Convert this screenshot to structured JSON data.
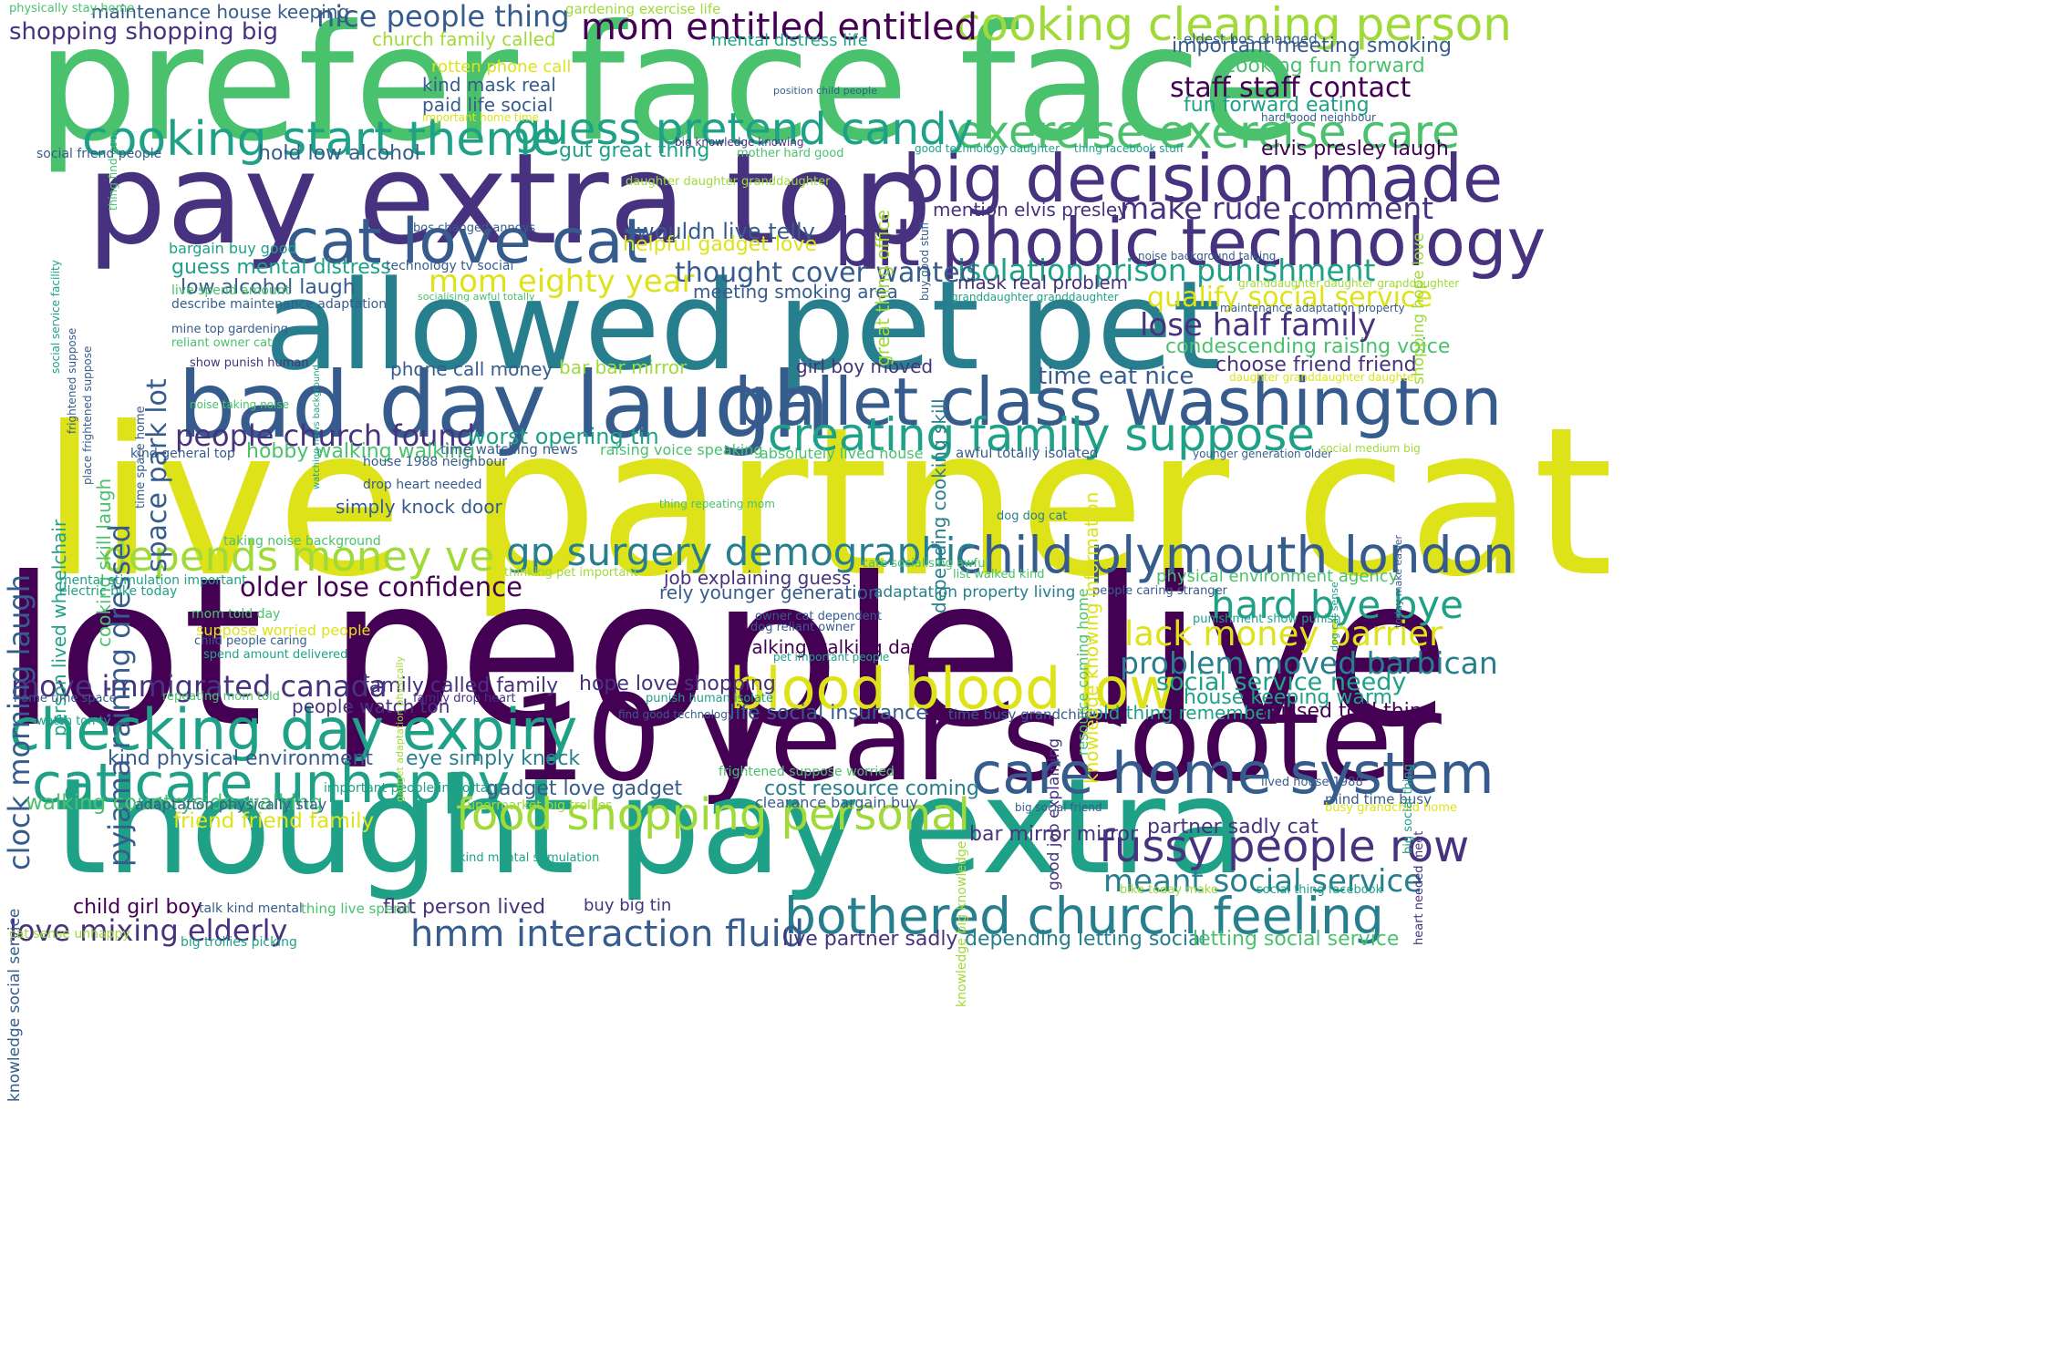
{
  "colors": {
    "yellow": "#dde318",
    "lime": "#a0da39",
    "green": "#4ac16d",
    "teal": "#1fa187",
    "blue": "#277f8e",
    "slate": "#365c8d",
    "indigo": "#46327e",
    "purple": "#440154"
  },
  "words": [
    {
      "text": "prefer face face",
      "color": "green"
    },
    {
      "text": "pay extra top",
      "color": "indigo"
    },
    {
      "text": "allowed pet pet",
      "color": "blue"
    },
    {
      "text": "bad day laugh",
      "color": "slate"
    },
    {
      "text": "live partner cat",
      "color": "yellow"
    },
    {
      "text": "lot people live",
      "color": "purple"
    },
    {
      "text": "10 year scooter",
      "color": "purple"
    },
    {
      "text": "thought pay extra",
      "color": "teal"
    },
    {
      "text": "big decision made",
      "color": "indigo"
    },
    {
      "text": "bit phobic technology",
      "color": "indigo"
    },
    {
      "text": "ballet class washington",
      "color": "slate"
    },
    {
      "text": "cooking cleaning person",
      "color": "lime"
    },
    {
      "text": "exercise exercise care",
      "color": "green"
    },
    {
      "text": "cat love cat",
      "color": "slate"
    },
    {
      "text": "cooking start theme",
      "color": "teal"
    },
    {
      "text": "guess pretend candy",
      "color": "teal"
    },
    {
      "text": "creating family suppose",
      "color": "teal"
    },
    {
      "text": "child plymouth london",
      "color": "slate"
    },
    {
      "text": "checking day expiry",
      "color": "teal"
    },
    {
      "text": "cat care unhappy",
      "color": "teal"
    },
    {
      "text": "blood blood low",
      "color": "yellow"
    },
    {
      "text": "care home system",
      "color": "slate"
    },
    {
      "text": "bothered church feeling",
      "color": "blue"
    },
    {
      "text": "food shopping personal",
      "color": "lime"
    },
    {
      "text": "fussy people row",
      "color": "indigo"
    },
    {
      "text": "hmm interaction fluid",
      "color": "slate"
    },
    {
      "text": "gp surgery demographic",
      "color": "blue"
    },
    {
      "text": "depends money ve",
      "color": "lime"
    },
    {
      "text": "people church found",
      "color": "indigo"
    },
    {
      "text": "mom entitled entitled",
      "color": "purple"
    },
    {
      "text": "nice people thing",
      "color": "slate"
    },
    {
      "text": "isolation prison punishment",
      "color": "teal"
    },
    {
      "text": "lose half family",
      "color": "indigo"
    },
    {
      "text": "hard bye bye",
      "color": "teal"
    },
    {
      "text": "lack money barrier",
      "color": "yellow"
    },
    {
      "text": "problem moved barbican",
      "color": "blue"
    },
    {
      "text": "move immigrated canada",
      "color": "indigo"
    },
    {
      "text": "older lose confidence",
      "color": "purple"
    },
    {
      "text": "meant social service",
      "color": "blue"
    },
    {
      "text": "love mixing elderly",
      "color": "indigo"
    },
    {
      "text": "make rude comment",
      "color": "indigo"
    },
    {
      "text": "mom eighty year",
      "color": "yellow"
    },
    {
      "text": "thought cover wanted",
      "color": "slate"
    },
    {
      "text": "staff staff contact",
      "color": "purple"
    },
    {
      "text": "qualify social service",
      "color": "yellow"
    },
    {
      "text": "clock morning laugh",
      "color": "slate"
    },
    {
      "text": "pyjama raining dressed",
      "color": "slate"
    },
    {
      "text": "space park lot",
      "color": "slate"
    },
    {
      "text": "social service needy",
      "color": "teal"
    },
    {
      "text": "house keeping warm",
      "color": "teal"
    },
    {
      "text": "walking countryside walking",
      "color": "green"
    },
    {
      "text": "friend friend family",
      "color": "yellow"
    },
    {
      "text": "kind physical environment",
      "color": "slate"
    },
    {
      "text": "eye simply knock",
      "color": "blue"
    },
    {
      "text": "people watch ton",
      "color": "indigo"
    },
    {
      "text": "family called family",
      "color": "indigo"
    },
    {
      "text": "hope love shopping",
      "color": "indigo"
    },
    {
      "text": "life social insurance",
      "color": "slate"
    },
    {
      "text": "told thing remember",
      "color": "teal"
    },
    {
      "text": "missed told thing",
      "color": "purple"
    },
    {
      "text": "gadget love gadget",
      "color": "slate"
    },
    {
      "text": "cost resource coming",
      "color": "blue"
    },
    {
      "text": "bar mirror mirror",
      "color": "indigo"
    },
    {
      "text": "partner sadly cat",
      "color": "indigo"
    },
    {
      "text": "flat person lived",
      "color": "indigo"
    },
    {
      "text": "buy big tin",
      "color": "indigo"
    },
    {
      "text": "child girl boy",
      "color": "purple"
    },
    {
      "text": "live partner sadly",
      "color": "indigo"
    },
    {
      "text": "depending letting social",
      "color": "blue"
    },
    {
      "text": "letting social service",
      "color": "green"
    },
    {
      "text": "worst opening tin",
      "color": "teal"
    },
    {
      "text": "hobby walking walking",
      "color": "green"
    },
    {
      "text": "time eat nice",
      "color": "slate"
    },
    {
      "text": "choose friend friend",
      "color": "indigo"
    },
    {
      "text": "condescending raising voice",
      "color": "green"
    },
    {
      "text": "mention elvis presley",
      "color": "indigo"
    },
    {
      "text": "elvis presley laugh",
      "color": "purple"
    },
    {
      "text": "fun forward eating",
      "color": "teal"
    },
    {
      "text": "cooking fun forward",
      "color": "green"
    },
    {
      "text": "important meeting smoking",
      "color": "slate"
    },
    {
      "text": "hold low alcohol",
      "color": "slate"
    },
    {
      "text": "gut great thing",
      "color": "teal"
    },
    {
      "text": "low alcohol laugh",
      "color": "slate"
    },
    {
      "text": "guess mental distress",
      "color": "teal"
    },
    {
      "text": "wouldn live telly",
      "color": "slate"
    },
    {
      "text": "helpful gadget love",
      "color": "yellow"
    },
    {
      "text": "meeting smoking area",
      "color": "slate"
    },
    {
      "text": "mask real problem",
      "color": "indigo"
    },
    {
      "text": "phone call money",
      "color": "slate"
    },
    {
      "text": "bar bar mirror",
      "color": "lime"
    },
    {
      "text": "girl boy moved",
      "color": "indigo"
    },
    {
      "text": "simply knock door",
      "color": "slate"
    },
    {
      "text": "job explaining guess",
      "color": "indigo"
    },
    {
      "text": "rely younger generation",
      "color": "slate"
    },
    {
      "text": "adaptation property living",
      "color": "blue"
    },
    {
      "text": "walking walking day",
      "color": "purple"
    },
    {
      "text": "physical environment agency",
      "color": "green"
    },
    {
      "text": "shopping shopping big",
      "color": "indigo"
    },
    {
      "text": "maintenance house keeping",
      "color": "slate"
    },
    {
      "text": "church family called",
      "color": "lime"
    },
    {
      "text": "kind mask real",
      "color": "slate"
    },
    {
      "text": "paid life social",
      "color": "slate"
    },
    {
      "text": "rotten phone call",
      "color": "yellow"
    },
    {
      "text": "mental distress life",
      "color": "teal"
    },
    {
      "text": "gardening exercise life",
      "color": "lime"
    },
    {
      "text": "eldest bos changed",
      "color": "slate"
    },
    {
      "text": "bargain buy good",
      "color": "teal"
    },
    {
      "text": "adaptation physically stay",
      "color": "slate"
    },
    {
      "text": "clearance bargain buy",
      "color": "slate"
    },
    {
      "text": "great thing office",
      "color": "lime"
    },
    {
      "text": "depending cooking skill",
      "color": "blue"
    },
    {
      "text": "cooking skill laugh",
      "color": "green"
    },
    {
      "text": "person lived wheelchair",
      "color": "teal"
    },
    {
      "text": "knowledge social service",
      "color": "slate"
    },
    {
      "text": "resource coming home",
      "color": "green"
    },
    {
      "text": "good job explaining",
      "color": "indigo"
    },
    {
      "text": "shopping hope love",
      "color": "lime"
    },
    {
      "text": "raising voice speaking",
      "color": "green"
    },
    {
      "text": "time watching news",
      "color": "slate"
    },
    {
      "text": "absolutely lived house",
      "color": "green"
    },
    {
      "text": "awful totally isolated",
      "color": "slate"
    },
    {
      "text": "kind general top",
      "color": "slate"
    },
    {
      "text": "house 1988 neighbour",
      "color": "slate"
    },
    {
      "text": "drop heart needed",
      "color": "slate"
    },
    {
      "text": "thing repeating mom",
      "color": "green"
    },
    {
      "text": "dog dog cat",
      "color": "blue"
    },
    {
      "text": "taking noise background",
      "color": "green"
    },
    {
      "text": "mental stimulation important",
      "color": "teal"
    },
    {
      "text": "electric bike today",
      "color": "teal"
    },
    {
      "text": "thinking pet important",
      "color": "lime"
    },
    {
      "text": "care socialising awful",
      "color": "green"
    },
    {
      "text": "list walked kind",
      "color": "green"
    },
    {
      "text": "people caring stranger",
      "color": "slate"
    },
    {
      "text": "punishment show punish",
      "color": "teal"
    },
    {
      "text": "owner cat dependent",
      "color": "slate"
    },
    {
      "text": "dog reliant owner",
      "color": "slate"
    },
    {
      "text": "pet important people",
      "color": "teal"
    },
    {
      "text": "mom told day",
      "color": "green"
    },
    {
      "text": "suppose worried people",
      "color": "yellow"
    },
    {
      "text": "child people caring",
      "color": "slate"
    },
    {
      "text": "spend amount delivered",
      "color": "teal"
    },
    {
      "text": "home time space",
      "color": "slate"
    },
    {
      "text": "repeating mom told",
      "color": "green"
    },
    {
      "text": "family drop heart",
      "color": "indigo"
    },
    {
      "text": "punish human isolate",
      "color": "teal"
    },
    {
      "text": "find good technology",
      "color": "slate"
    },
    {
      "text": "time busy grandchild",
      "color": "slate"
    },
    {
      "text": "watch ton tv",
      "color": "teal"
    },
    {
      "text": "important people important",
      "color": "teal"
    },
    {
      "text": "supermarket big trollies",
      "color": "lime"
    },
    {
      "text": "frightened suppose worried",
      "color": "green"
    },
    {
      "text": "big social friend",
      "color": "slate"
    },
    {
      "text": "mind time busy",
      "color": "slate"
    },
    {
      "text": "busy grandchild home",
      "color": "yellow"
    },
    {
      "text": "lived house 1988",
      "color": "slate"
    },
    {
      "text": "kind mental stimulation",
      "color": "teal"
    },
    {
      "text": "talk kind mental",
      "color": "slate"
    },
    {
      "text": "thing live spend",
      "color": "green"
    },
    {
      "text": "cat sense unhappy",
      "color": "lime"
    },
    {
      "text": "big trollies picking",
      "color": "teal"
    },
    {
      "text": "bike today make",
      "color": "lime"
    },
    {
      "text": "social thing facebook",
      "color": "teal"
    },
    {
      "text": "knowledge big knowledge",
      "color": "lime"
    },
    {
      "text": "big social thing",
      "color": "teal"
    },
    {
      "text": "heart needed meet",
      "color": "indigo"
    },
    {
      "text": "physically stay home",
      "color": "green"
    },
    {
      "text": "thing find good",
      "color": "green"
    },
    {
      "text": "social friend people",
      "color": "slate"
    },
    {
      "text": "social service facility",
      "color": "teal"
    },
    {
      "text": "frightened suppose",
      "color": "slate"
    },
    {
      "text": "place frightened suppose",
      "color": "slate"
    },
    {
      "text": "describe maintenance adaptation",
      "color": "slate"
    },
    {
      "text": "live spend amount",
      "color": "green"
    },
    {
      "text": "mine top gardening",
      "color": "slate"
    },
    {
      "text": "reliant owner cat",
      "color": "green"
    },
    {
      "text": "show punish human",
      "color": "indigo"
    },
    {
      "text": "noise taking noise",
      "color": "green"
    },
    {
      "text": "time space home",
      "color": "slate"
    },
    {
      "text": "watching news background",
      "color": "teal"
    },
    {
      "text": "socialising awful totally",
      "color": "green"
    },
    {
      "text": "technology tv social",
      "color": "slate"
    },
    {
      "text": "bos changed annoys",
      "color": "slate"
    },
    {
      "text": "daughter daughter granddaughter",
      "color": "lime"
    },
    {
      "text": "mother hard good",
      "color": "green"
    },
    {
      "text": "big knowledge knowing",
      "color": "indigo"
    },
    {
      "text": "position child people",
      "color": "slate"
    },
    {
      "text": "important home time",
      "color": "yellow"
    },
    {
      "text": "buy good stuff",
      "color": "slate"
    },
    {
      "text": "good technology daughter",
      "color": "teal"
    },
    {
      "text": "thing facebook stuff",
      "color": "teal"
    },
    {
      "text": "hard good neighbour",
      "color": "slate"
    },
    {
      "text": "noise background talking",
      "color": "slate"
    },
    {
      "text": "granddaughter daughter granddaughter",
      "color": "lime"
    },
    {
      "text": "granddaughter granddaughter",
      "color": "teal"
    },
    {
      "text": "maintenance adaptation property",
      "color": "slate"
    },
    {
      "text": "daughter granddaughter daughter",
      "color": "yellow"
    },
    {
      "text": "younger generation older",
      "color": "slate"
    },
    {
      "text": "social medium big",
      "color": "lime"
    },
    {
      "text": "today make easier",
      "color": "slate"
    },
    {
      "text": "dog cat sense",
      "color": "teal"
    },
    {
      "text": "gadget adaptation physically",
      "color": "lime"
    },
    {
      "text": "knowledge knowing information",
      "color": "yellow"
    },
    {
      "text": "explaining",
      "color": "slate"
    }
  ]
}
